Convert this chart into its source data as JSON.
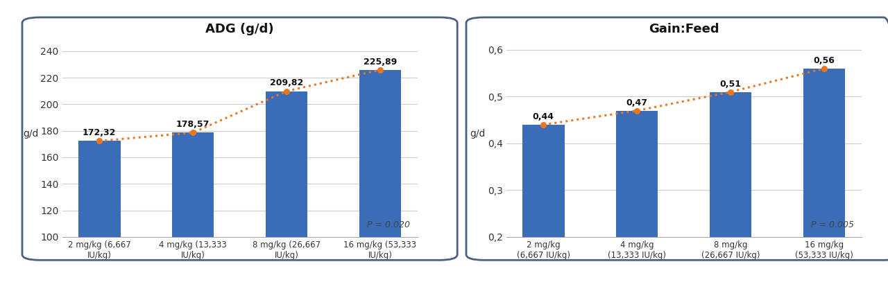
{
  "chart1": {
    "title": "ADG (g/d)",
    "categories": [
      "2 mg/kg (6,667\nIU/kg)",
      "4 mg/kg (13,333\nIU/kg)",
      "8 mg/kg (26,667\nIU/kg)",
      "16 mg/kg (53,333\nIU/kg)"
    ],
    "values": [
      172.32,
      178.57,
      209.82,
      225.89
    ],
    "labels": [
      "172,32",
      "178,57",
      "209,82",
      "225,89"
    ],
    "ylim": [
      100,
      248
    ],
    "yticks": [
      100,
      120,
      140,
      160,
      180,
      200,
      220,
      240
    ],
    "ytick_labels": [
      "100",
      "120",
      "140",
      "160",
      "180",
      "200",
      "220",
      "240"
    ],
    "ylabel": "g/d",
    "p_value": "P = 0.020",
    "bar_color": "#3B6CB7",
    "line_color": "#E87722"
  },
  "chart2": {
    "title": "Gain:Feed",
    "categories": [
      "2 mg/kg\n(6,667 IU/kg)",
      "4 mg/kg\n(13,333 IU/kg)",
      "8 mg/kg\n(26,667 IU/kg)",
      "16 mg/kg\n(53,333 IU/kg)"
    ],
    "values": [
      0.44,
      0.47,
      0.51,
      0.56
    ],
    "labels": [
      "0,44",
      "0,47",
      "0,51",
      "0,56"
    ],
    "ylim": [
      0.2,
      0.62
    ],
    "yticks": [
      0.2,
      0.3,
      0.4,
      0.5,
      0.6
    ],
    "ytick_labels": [
      "0,2",
      "0,3",
      "0,4",
      "0,5",
      "0,6"
    ],
    "ylabel": "g/d",
    "p_value": "P = 0.005",
    "bar_color": "#3B6CB7",
    "line_color": "#E87722"
  },
  "fig_background": "#FFFFFF",
  "plot_background": "#FFFFFF",
  "border_color": "#4A6080",
  "grid_color": "#CCCCCC",
  "title_fontsize": 13,
  "label_fontsize": 8.5,
  "tick_fontsize": 10,
  "ylabel_fontsize": 10,
  "bar_label_fontsize": 9,
  "p_fontsize": 9,
  "bar_width": 0.45
}
